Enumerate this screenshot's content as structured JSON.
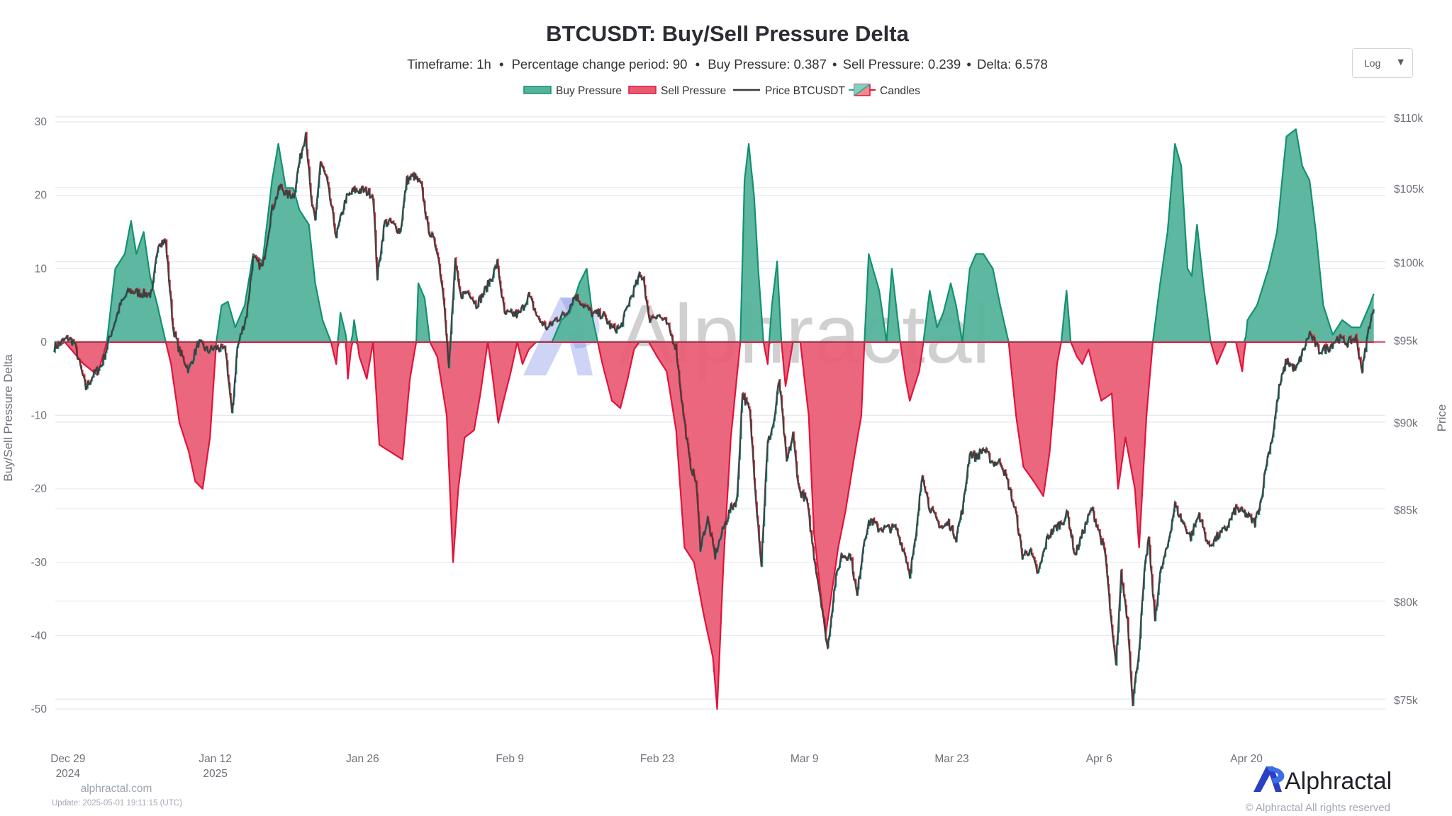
{
  "chart_data": {
    "type": "area",
    "title": "BTCUSDT: Buy/Sell Pressure Delta",
    "subtitle": {
      "timeframe": "Timeframe: 1h",
      "period": "Percentage change period: 90",
      "buy": "Buy Pressure: 0.387",
      "sell": "Sell Pressure: 0.239",
      "delta": "Delta: 6.578",
      "separator": "•"
    },
    "legend": {
      "placement": "top-center",
      "items": [
        {
          "label": "Buy Pressure",
          "color": "#55b39b"
        },
        {
          "label": "Sell Pressure",
          "color": "#e85a72"
        },
        {
          "label": "Price BTCUSDT",
          "color": "#3a3a3a"
        },
        {
          "label": "Candles",
          "color": "#e0143c"
        }
      ]
    },
    "x_unit": "days since Dec 29 2024",
    "xlim": [
      -1.2,
      125.2
    ],
    "x_ticks": [
      {
        "day": 0,
        "label": "Dec 29",
        "sub": "2024"
      },
      {
        "day": 14,
        "label": "Jan 12",
        "sub": "2025"
      },
      {
        "day": 28,
        "label": "Jan 26",
        "sub": ""
      },
      {
        "day": 42,
        "label": "Feb 9",
        "sub": ""
      },
      {
        "day": 56,
        "label": "Feb 23",
        "sub": ""
      },
      {
        "day": 70,
        "label": "Mar 9",
        "sub": ""
      },
      {
        "day": 84,
        "label": "Mar 23",
        "sub": ""
      },
      {
        "day": 98,
        "label": "Apr 6",
        "sub": ""
      },
      {
        "day": 112,
        "label": "Apr 20",
        "sub": ""
      }
    ],
    "ylabel": "Buy/Sell Pressure Delta",
    "ylim": [
      -50,
      30
    ],
    "y_ticks": [
      "30",
      "20",
      "10",
      "0",
      "-10",
      "-20",
      "-30",
      "-40",
      "-50"
    ],
    "y2label": "Price",
    "y2_scale": "log",
    "y2lim": [
      75000,
      110000
    ],
    "y2_ticks": [
      {
        "value": 110000,
        "label": "$110k"
      },
      {
        "value": 105000,
        "label": "$105k"
      },
      {
        "value": 100000,
        "label": "$100k"
      },
      {
        "value": 95000,
        "label": "$95k"
      },
      {
        "value": 90000,
        "label": "$90k"
      },
      {
        "value": 85000,
        "label": "$85k"
      },
      {
        "value": 80000,
        "label": "$80k"
      },
      {
        "value": 75000,
        "label": "$75k"
      }
    ],
    "grid": true,
    "colors": {
      "buy_fill": "#55b39b",
      "buy_line": "#139170",
      "sell_fill": "#e85a72",
      "sell_line": "#e0143c",
      "price": "#3a3a3a",
      "candle_up": "#26a69a",
      "candle_down": "#ef2b3a",
      "grid": "#e6e8ec",
      "tick": "#6e7079"
    },
    "delta_series": [
      [
        -1.3,
        -1
      ],
      [
        -0.3,
        0
      ],
      [
        1.5,
        -3
      ],
      [
        2.8,
        -4.5
      ],
      [
        3.7,
        0
      ],
      [
        4.5,
        10
      ],
      [
        5.4,
        12
      ],
      [
        6.0,
        16.5
      ],
      [
        6.5,
        12
      ],
      [
        7.2,
        15
      ],
      [
        7.8,
        9
      ],
      [
        8.5,
        5
      ],
      [
        9.3,
        0
      ],
      [
        9.8,
        -3
      ],
      [
        10.6,
        -11
      ],
      [
        11.5,
        -15
      ],
      [
        12.1,
        -19
      ],
      [
        12.8,
        -20
      ],
      [
        13.5,
        -13
      ],
      [
        14.1,
        0
      ],
      [
        14.6,
        5
      ],
      [
        15.2,
        5.5
      ],
      [
        15.9,
        2
      ],
      [
        16.8,
        5
      ],
      [
        17.6,
        12
      ],
      [
        18.5,
        11
      ],
      [
        19.4,
        22
      ],
      [
        20.0,
        27
      ],
      [
        20.7,
        21
      ],
      [
        21.4,
        21
      ],
      [
        22.0,
        18
      ],
      [
        22.9,
        16
      ],
      [
        23.5,
        8
      ],
      [
        24.2,
        3
      ],
      [
        25.0,
        0
      ],
      [
        25.5,
        -3
      ],
      [
        25.9,
        4
      ],
      [
        26.4,
        1
      ],
      [
        26.6,
        -5
      ],
      [
        27.2,
        3
      ],
      [
        27.7,
        -2
      ],
      [
        28.4,
        -5
      ],
      [
        29.0,
        0
      ],
      [
        29.6,
        -14
      ],
      [
        30.7,
        -15
      ],
      [
        31.8,
        -16
      ],
      [
        32.5,
        -5
      ],
      [
        33.1,
        0
      ],
      [
        33.3,
        8
      ],
      [
        33.9,
        6
      ],
      [
        34.4,
        0
      ],
      [
        35.1,
        -2
      ],
      [
        36.0,
        -10
      ],
      [
        36.6,
        -30
      ],
      [
        37.1,
        -20
      ],
      [
        37.7,
        -13
      ],
      [
        38.6,
        -12
      ],
      [
        39.2,
        -7
      ],
      [
        39.9,
        0
      ],
      [
        40.3,
        -4
      ],
      [
        40.9,
        -11
      ],
      [
        41.4,
        -8
      ],
      [
        42.1,
        -4
      ],
      [
        42.7,
        0
      ],
      [
        43.2,
        -3
      ],
      [
        43.8,
        -1
      ],
      [
        44.5,
        0
      ],
      [
        46.0,
        0
      ],
      [
        46.9,
        3
      ],
      [
        47.7,
        4
      ],
      [
        48.6,
        8
      ],
      [
        49.3,
        10
      ],
      [
        49.9,
        3
      ],
      [
        50.8,
        -3
      ],
      [
        51.7,
        -8
      ],
      [
        52.5,
        -9
      ],
      [
        53.2,
        -5
      ],
      [
        53.8,
        -1
      ],
      [
        54.3,
        0
      ],
      [
        55.2,
        0
      ],
      [
        56.0,
        -2
      ],
      [
        56.9,
        -4
      ],
      [
        57.8,
        -12
      ],
      [
        58.6,
        -28
      ],
      [
        59.5,
        -30
      ],
      [
        60.4,
        -37
      ],
      [
        61.3,
        -43
      ],
      [
        61.7,
        -50
      ],
      [
        62.3,
        -30
      ],
      [
        63.0,
        -13
      ],
      [
        63.9,
        0
      ],
      [
        64.3,
        22
      ],
      [
        64.7,
        27
      ],
      [
        65.2,
        20
      ],
      [
        65.6,
        10
      ],
      [
        66.1,
        0
      ],
      [
        66.5,
        -3
      ],
      [
        66.9,
        5
      ],
      [
        67.4,
        11
      ],
      [
        67.8,
        0
      ],
      [
        68.2,
        -6
      ],
      [
        68.9,
        0
      ],
      [
        69.6,
        0
      ],
      [
        70.0,
        -5
      ],
      [
        70.4,
        -10
      ],
      [
        70.9,
        -26
      ],
      [
        71.6,
        -35
      ],
      [
        72.0,
        -40
      ],
      [
        72.4,
        -36
      ],
      [
        73.2,
        -28
      ],
      [
        73.9,
        -23
      ],
      [
        74.8,
        -15
      ],
      [
        75.4,
        -10
      ],
      [
        75.7,
        0
      ],
      [
        76.1,
        12
      ],
      [
        76.5,
        10
      ],
      [
        77.1,
        7
      ],
      [
        77.8,
        0
      ],
      [
        78.3,
        10
      ],
      [
        78.7,
        5
      ],
      [
        79.1,
        0
      ],
      [
        79.6,
        -5
      ],
      [
        80.0,
        -8
      ],
      [
        80.9,
        -4
      ],
      [
        81.3,
        0
      ],
      [
        81.9,
        7
      ],
      [
        82.6,
        2
      ],
      [
        83.2,
        4
      ],
      [
        83.9,
        8
      ],
      [
        84.4,
        5
      ],
      [
        85.0,
        0
      ],
      [
        85.7,
        10
      ],
      [
        86.3,
        12
      ],
      [
        87.0,
        12
      ],
      [
        87.9,
        10
      ],
      [
        88.6,
        5
      ],
      [
        89.4,
        0
      ],
      [
        90.1,
        -10
      ],
      [
        90.8,
        -17
      ],
      [
        91.8,
        -19
      ],
      [
        92.7,
        -21
      ],
      [
        93.3,
        -15
      ],
      [
        94.0,
        -3
      ],
      [
        94.4,
        0
      ],
      [
        94.9,
        7
      ],
      [
        95.3,
        0
      ],
      [
        95.9,
        -2
      ],
      [
        96.4,
        -3
      ],
      [
        97.0,
        -1
      ],
      [
        97.5,
        -4
      ],
      [
        98.2,
        -8
      ],
      [
        99.2,
        -7
      ],
      [
        99.8,
        -20
      ],
      [
        100.5,
        -13
      ],
      [
        101.4,
        -20
      ],
      [
        101.8,
        -28
      ],
      [
        102.5,
        -10
      ],
      [
        103.1,
        0
      ],
      [
        103.8,
        8
      ],
      [
        104.5,
        15
      ],
      [
        105.2,
        27
      ],
      [
        105.8,
        24
      ],
      [
        106.4,
        10
      ],
      [
        106.8,
        9
      ],
      [
        107.3,
        16
      ],
      [
        107.9,
        8
      ],
      [
        108.6,
        0
      ],
      [
        109.2,
        -3
      ],
      [
        110.1,
        0
      ],
      [
        111.0,
        0
      ],
      [
        111.6,
        -4
      ],
      [
        112.1,
        3
      ],
      [
        113.0,
        5
      ],
      [
        114.1,
        10
      ],
      [
        114.9,
        15
      ],
      [
        115.8,
        28
      ],
      [
        116.7,
        29
      ],
      [
        117.3,
        24
      ],
      [
        118.0,
        22
      ],
      [
        118.6,
        15
      ],
      [
        119.3,
        5
      ],
      [
        120.2,
        1
      ],
      [
        121.1,
        3
      ],
      [
        122.0,
        2
      ],
      [
        122.8,
        2
      ],
      [
        123.7,
        5
      ],
      [
        124.1,
        6.578
      ]
    ],
    "price_series": [
      [
        -1.3,
        94600
      ],
      [
        0,
        95200
      ],
      [
        0.6,
        94900
      ],
      [
        1.7,
        92100
      ],
      [
        2.4,
        92900
      ],
      [
        3.2,
        93500
      ],
      [
        4.1,
        95500
      ],
      [
        5.0,
        97300
      ],
      [
        5.8,
        98200
      ],
      [
        7.2,
        98000
      ],
      [
        8.0,
        98000
      ],
      [
        8.6,
        101400
      ],
      [
        9.3,
        101400
      ],
      [
        10.0,
        95800
      ],
      [
        10.6,
        94400
      ],
      [
        11.5,
        93200
      ],
      [
        12.4,
        94900
      ],
      [
        13.3,
        94400
      ],
      [
        14.1,
        94600
      ],
      [
        15.0,
        94400
      ],
      [
        15.6,
        90400
      ],
      [
        16.1,
        94600
      ],
      [
        17.0,
        96700
      ],
      [
        17.6,
        100300
      ],
      [
        18.5,
        99700
      ],
      [
        19.4,
        103600
      ],
      [
        20.2,
        105200
      ],
      [
        20.8,
        104600
      ],
      [
        21.5,
        104600
      ],
      [
        21.9,
        106500
      ],
      [
        22.6,
        109000
      ],
      [
        23.1,
        104300
      ],
      [
        23.5,
        102700
      ],
      [
        24.0,
        106900
      ],
      [
        24.6,
        105600
      ],
      [
        25.5,
        101800
      ],
      [
        26.4,
        104300
      ],
      [
        27.2,
        104900
      ],
      [
        28.1,
        104900
      ],
      [
        29.0,
        104600
      ],
      [
        29.4,
        99100
      ],
      [
        30.1,
        102700
      ],
      [
        30.7,
        102700
      ],
      [
        31.6,
        102100
      ],
      [
        32.2,
        105600
      ],
      [
        32.9,
        105900
      ],
      [
        33.6,
        105200
      ],
      [
        34.2,
        102400
      ],
      [
        35.1,
        100900
      ],
      [
        35.8,
        97300
      ],
      [
        36.2,
        93200
      ],
      [
        36.8,
        100000
      ],
      [
        37.3,
        97900
      ],
      [
        38.1,
        98200
      ],
      [
        38.8,
        97300
      ],
      [
        39.4,
        97900
      ],
      [
        40.3,
        99100
      ],
      [
        40.8,
        100000
      ],
      [
        41.5,
        96700
      ],
      [
        42.3,
        96700
      ],
      [
        42.9,
        96700
      ],
      [
        43.8,
        97900
      ],
      [
        44.7,
        96400
      ],
      [
        45.6,
        95800
      ],
      [
        46.4,
        96400
      ],
      [
        47.3,
        96700
      ],
      [
        48.2,
        97900
      ],
      [
        49.0,
        97300
      ],
      [
        49.9,
        96700
      ],
      [
        50.8,
        96700
      ],
      [
        51.7,
        95800
      ],
      [
        52.5,
        95800
      ],
      [
        53.4,
        97600
      ],
      [
        54.3,
        99100
      ],
      [
        54.7,
        99100
      ],
      [
        55.2,
        96400
      ],
      [
        56.0,
        96700
      ],
      [
        56.9,
        96100
      ],
      [
        57.8,
        94600
      ],
      [
        58.4,
        91000
      ],
      [
        59.1,
        87700
      ],
      [
        59.7,
        86600
      ],
      [
        60.1,
        83000
      ],
      [
        60.8,
        84500
      ],
      [
        61.5,
        82500
      ],
      [
        62.3,
        84000
      ],
      [
        63.0,
        85100
      ],
      [
        63.6,
        85600
      ],
      [
        64.1,
        91800
      ],
      [
        64.8,
        90700
      ],
      [
        65.4,
        85600
      ],
      [
        65.9,
        82000
      ],
      [
        66.5,
        88800
      ],
      [
        67.1,
        90100
      ],
      [
        67.6,
        92600
      ],
      [
        68.3,
        87700
      ],
      [
        68.9,
        89300
      ],
      [
        69.5,
        86100
      ],
      [
        70.2,
        85600
      ],
      [
        70.9,
        82500
      ],
      [
        71.6,
        80000
      ],
      [
        72.2,
        77600
      ],
      [
        72.9,
        81000
      ],
      [
        73.5,
        82500
      ],
      [
        74.4,
        82500
      ],
      [
        75.0,
        80300
      ],
      [
        75.7,
        83500
      ],
      [
        76.3,
        84500
      ],
      [
        77.0,
        84000
      ],
      [
        77.8,
        84000
      ],
      [
        78.7,
        84000
      ],
      [
        79.6,
        82500
      ],
      [
        80.0,
        81500
      ],
      [
        80.6,
        83500
      ],
      [
        81.2,
        87200
      ],
      [
        81.8,
        85300
      ],
      [
        82.5,
        84500
      ],
      [
        83.1,
        84000
      ],
      [
        83.7,
        84300
      ],
      [
        84.4,
        83500
      ],
      [
        85.1,
        85300
      ],
      [
        85.7,
        88300
      ],
      [
        86.3,
        88000
      ],
      [
        87.0,
        88500
      ],
      [
        87.9,
        87700
      ],
      [
        88.7,
        87700
      ],
      [
        89.4,
        86400
      ],
      [
        90.1,
        84800
      ],
      [
        90.7,
        82500
      ],
      [
        91.4,
        82800
      ],
      [
        92.2,
        81500
      ],
      [
        93.1,
        83500
      ],
      [
        93.8,
        84000
      ],
      [
        94.4,
        84300
      ],
      [
        95.0,
        84800
      ],
      [
        95.7,
        82500
      ],
      [
        96.6,
        84000
      ],
      [
        97.3,
        85100
      ],
      [
        97.9,
        84000
      ],
      [
        98.6,
        82500
      ],
      [
        99.2,
        78600
      ],
      [
        99.6,
        76700
      ],
      [
        100.1,
        81500
      ],
      [
        100.7,
        79100
      ],
      [
        101.2,
        74900
      ],
      [
        101.8,
        77600
      ],
      [
        102.3,
        81500
      ],
      [
        102.7,
        83500
      ],
      [
        103.3,
        79100
      ],
      [
        103.8,
        81500
      ],
      [
        104.5,
        83000
      ],
      [
        105.2,
        85300
      ],
      [
        105.8,
        84500
      ],
      [
        106.7,
        83500
      ],
      [
        107.5,
        84800
      ],
      [
        108.4,
        83000
      ],
      [
        109.2,
        83500
      ],
      [
        110.1,
        84000
      ],
      [
        111.0,
        85100
      ],
      [
        111.9,
        84800
      ],
      [
        112.8,
        84300
      ],
      [
        113.4,
        85600
      ],
      [
        113.9,
        87700
      ],
      [
        114.5,
        89300
      ],
      [
        115.1,
        92100
      ],
      [
        115.8,
        93800
      ],
      [
        116.7,
        93200
      ],
      [
        117.4,
        94400
      ],
      [
        118.0,
        95500
      ],
      [
        118.9,
        94400
      ],
      [
        119.8,
        94600
      ],
      [
        120.7,
        95200
      ],
      [
        121.6,
        94900
      ],
      [
        122.4,
        95200
      ],
      [
        123.0,
        93200
      ],
      [
        123.7,
        96100
      ],
      [
        124.1,
        97000
      ]
    ]
  },
  "controls": {
    "scale_select": {
      "value": "Log",
      "caret": "▼"
    }
  },
  "watermark": {
    "text": "Alphractal"
  },
  "footer": {
    "site": "alphractal.com",
    "update": "Update: 2025-05-01 19:11:15 (UTC)",
    "brand": "Alphractal",
    "copyright": "© Alphractal All rights reserved"
  }
}
